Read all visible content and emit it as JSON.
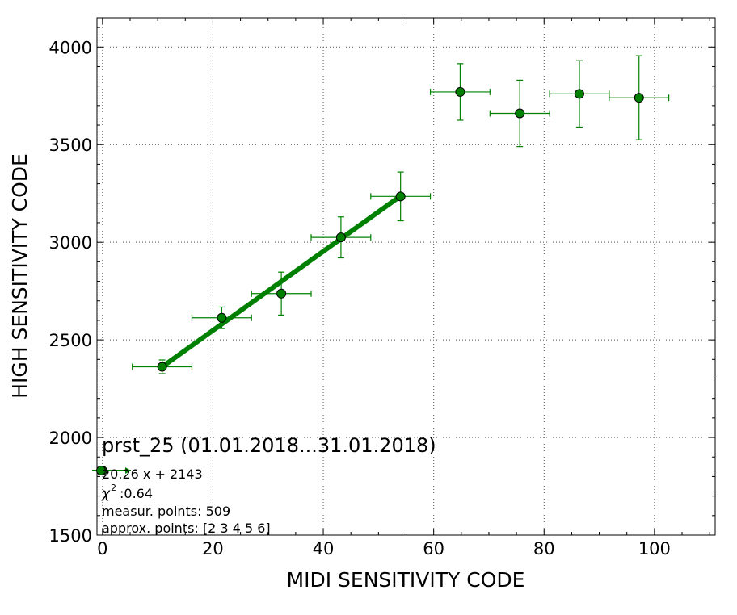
{
  "chart_data": {
    "type": "scatter",
    "title": "prst_25 (01.01.2018...31.01.2018)",
    "xlabel": "MIDI SENSITIVITY CODE",
    "ylabel": "HIGH SENSITIVITY CODE",
    "xlim": [
      -1,
      111
    ],
    "ylim": [
      1500,
      4150
    ],
    "xticks": [
      0,
      20,
      40,
      60,
      80,
      100
    ],
    "yticks": [
      1500,
      2000,
      2500,
      3000,
      3500,
      4000
    ],
    "grid": true,
    "colors": {
      "series": "#008000",
      "marker_edge": "#000000",
      "grid": "#555555"
    },
    "series": [
      {
        "points": [
          {
            "x": 0.0,
            "y": 1830,
            "xerr": 0,
            "yerr": 0
          },
          {
            "x": 10.8,
            "y": 2362,
            "xerr": 5.4,
            "yerr": 35
          },
          {
            "x": 21.6,
            "y": 2613,
            "xerr": 5.4,
            "yerr": 55
          },
          {
            "x": 32.4,
            "y": 2737,
            "xerr": 5.4,
            "yerr": 110
          },
          {
            "x": 43.2,
            "y": 3025,
            "xerr": 5.4,
            "yerr": 105
          },
          {
            "x": 54.0,
            "y": 3235,
            "xerr": 5.4,
            "yerr": 125
          },
          {
            "x": 64.8,
            "y": 3770,
            "xerr": 5.4,
            "yerr": 145
          },
          {
            "x": 75.6,
            "y": 3660,
            "xerr": 5.4,
            "yerr": 170
          },
          {
            "x": 86.4,
            "y": 3760,
            "xerr": 5.4,
            "yerr": 170
          },
          {
            "x": 97.2,
            "y": 3740,
            "xerr": 5.4,
            "yerr": 215
          }
        ]
      }
    ],
    "fit": {
      "slope": 20.26,
      "intercept": 2143,
      "x_range": [
        10.8,
        54.0
      ]
    },
    "legend": {
      "title": "prst_25 (01.01.2018...31.01.2018)",
      "lines": [
        "20.26 x + 2143",
        ":0.64",
        "measur. points: 509",
        "approx. points: [2 3 4 5 6]"
      ],
      "chi_symbol": "χ",
      "chi_sup": "2"
    }
  }
}
